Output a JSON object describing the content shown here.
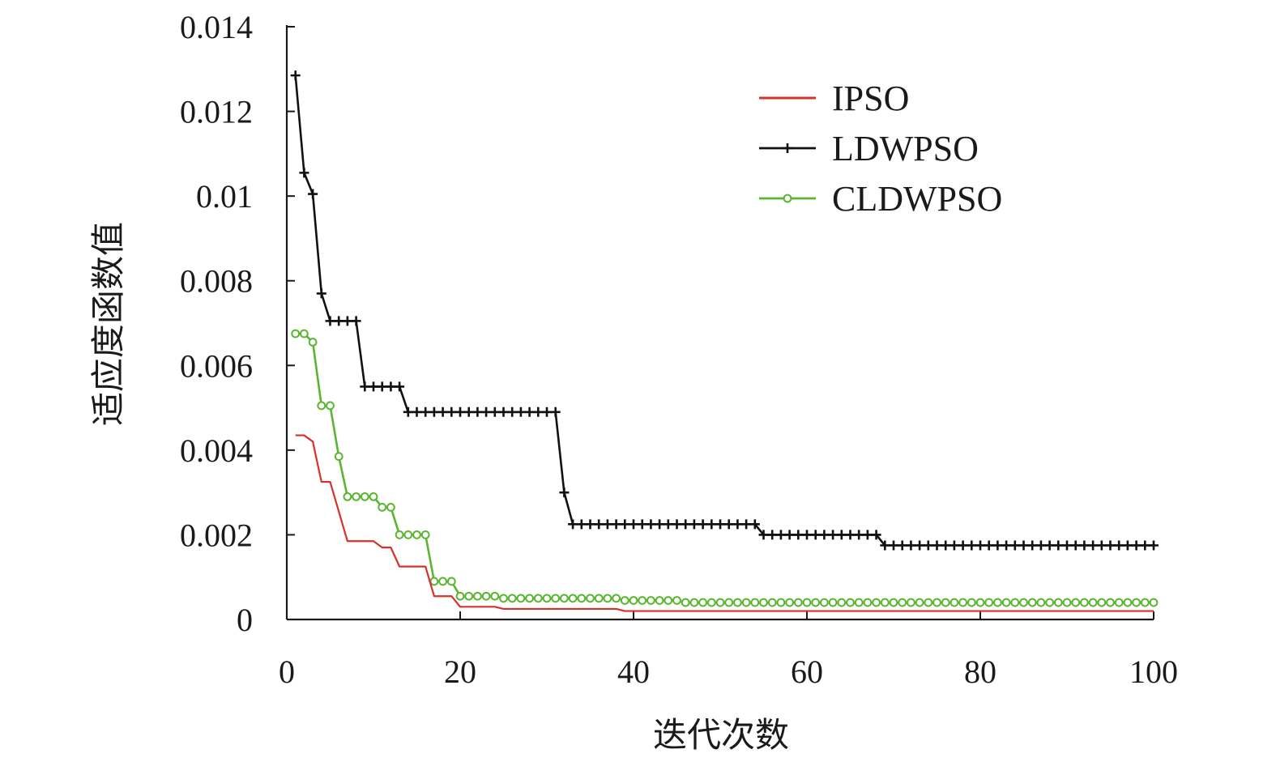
{
  "chart_data": {
    "type": "line",
    "title": "",
    "xlabel": "迭代次数",
    "ylabel": "适应度函数值",
    "xlim": [
      0,
      100
    ],
    "ylim": [
      0,
      0.014
    ],
    "xticks": [
      0,
      20,
      40,
      60,
      80,
      100
    ],
    "xtick_labels": [
      "0",
      "20",
      "40",
      "60",
      "80",
      "100"
    ],
    "yticks": [
      0,
      0.002,
      0.004,
      0.006,
      0.008,
      0.01,
      0.012,
      0.014
    ],
    "ytick_labels": [
      "0",
      "0.002",
      "0.004",
      "0.006",
      "0.008",
      "0.01",
      "0.012",
      "0.014"
    ],
    "grid": false,
    "legend_position": "top-right",
    "series": [
      {
        "name": "IPSO",
        "color": "#d9302b",
        "marker": "none",
        "points": [
          [
            1,
            0.00435
          ],
          [
            2,
            0.00435
          ],
          [
            3,
            0.0042
          ],
          [
            4,
            0.00325
          ],
          [
            5,
            0.00325
          ],
          [
            7,
            0.00185
          ],
          [
            10,
            0.00185
          ],
          [
            11,
            0.0017
          ],
          [
            12,
            0.0017
          ],
          [
            13,
            0.00125
          ],
          [
            16,
            0.00125
          ],
          [
            17,
            0.00055
          ],
          [
            19,
            0.00055
          ],
          [
            20,
            0.0003
          ],
          [
            24,
            0.0003
          ],
          [
            25,
            0.00025
          ],
          [
            38,
            0.00025
          ],
          [
            39,
            0.0002
          ],
          [
            100,
            0.0002
          ]
        ]
      },
      {
        "name": "LDWPSO",
        "color": "#111111",
        "marker": "plus",
        "values": [
          0.01285,
          0.01055,
          0.01005,
          0.0077,
          0.00705,
          0.00705,
          0.00705,
          0.00705,
          0.0055,
          0.0055,
          0.0055,
          0.0055,
          0.0055,
          0.0049,
          0.0049,
          0.0049,
          0.0049,
          0.0049,
          0.0049,
          0.0049,
          0.0049,
          0.0049,
          0.0049,
          0.0049,
          0.0049,
          0.0049,
          0.0049,
          0.0049,
          0.0049,
          0.0049,
          0.0049,
          0.003,
          0.00225,
          0.00225,
          0.00225,
          0.00225,
          0.00225,
          0.00225,
          0.00225,
          0.00225,
          0.00225,
          0.00225,
          0.00225,
          0.00225,
          0.00225,
          0.00225,
          0.00225,
          0.00225,
          0.00225,
          0.00225,
          0.00225,
          0.00225,
          0.00225,
          0.00225,
          0.002,
          0.002,
          0.002,
          0.002,
          0.002,
          0.002,
          0.002,
          0.002,
          0.002,
          0.002,
          0.002,
          0.002,
          0.002,
          0.002,
          0.00175,
          0.00175,
          0.00175,
          0.00175,
          0.00175,
          0.00175,
          0.00175,
          0.00175,
          0.00175,
          0.00175,
          0.00175,
          0.00175,
          0.00175,
          0.00175,
          0.00175,
          0.00175,
          0.00175,
          0.00175,
          0.00175,
          0.00175,
          0.00175,
          0.00175,
          0.00175,
          0.00175,
          0.00175,
          0.00175,
          0.00175,
          0.00175,
          0.00175,
          0.00175,
          0.00175,
          0.00175
        ]
      },
      {
        "name": "CLDWPSO",
        "color": "#5bb531",
        "marker": "circle",
        "values": [
          0.00675,
          0.00675,
          0.00655,
          0.00505,
          0.00505,
          0.00385,
          0.0029,
          0.0029,
          0.0029,
          0.0029,
          0.00265,
          0.00265,
          0.002,
          0.002,
          0.002,
          0.002,
          0.0009,
          0.0009,
          0.0009,
          0.00055,
          0.00055,
          0.00055,
          0.00055,
          0.00055,
          0.0005,
          0.0005,
          0.0005,
          0.0005,
          0.0005,
          0.0005,
          0.0005,
          0.0005,
          0.0005,
          0.0005,
          0.0005,
          0.0005,
          0.0005,
          0.0005,
          0.00045,
          0.00045,
          0.00045,
          0.00045,
          0.00045,
          0.00045,
          0.00045,
          0.0004,
          0.0004,
          0.0004,
          0.0004,
          0.0004,
          0.0004,
          0.0004,
          0.0004,
          0.0004,
          0.0004,
          0.0004,
          0.0004,
          0.0004,
          0.0004,
          0.0004,
          0.0004,
          0.0004,
          0.0004,
          0.0004,
          0.0004,
          0.0004,
          0.0004,
          0.0004,
          0.0004,
          0.0004,
          0.0004,
          0.0004,
          0.0004,
          0.0004,
          0.0004,
          0.0004,
          0.0004,
          0.0004,
          0.0004,
          0.0004,
          0.0004,
          0.0004,
          0.0004,
          0.0004,
          0.0004,
          0.0004,
          0.0004,
          0.0004,
          0.0004,
          0.0004,
          0.0004,
          0.0004,
          0.0004,
          0.0004,
          0.0004,
          0.0004,
          0.0004,
          0.0004,
          0.0004,
          0.0004
        ]
      }
    ]
  }
}
